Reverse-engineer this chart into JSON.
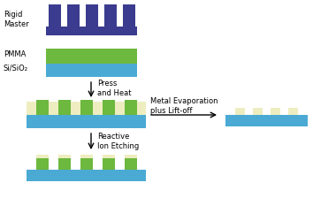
{
  "bg_color": "#ffffff",
  "colors": {
    "dark_blue": "#3b3b8f",
    "green": "#6db83e",
    "light_blue": "#4aaad4",
    "cream": "#eeedc0",
    "light_green": "#8dc63f"
  },
  "rigid_master_label": "Rigid\nMaster",
  "pmma_label": "PMMA",
  "si_label": "Si/SiO₂",
  "press_label": "Press\nand Heat",
  "metal_label": "Metal Evaporation\nplus Lift-off",
  "reactive_label": "Reactive\nIon Etching",
  "font_size": 6.0
}
